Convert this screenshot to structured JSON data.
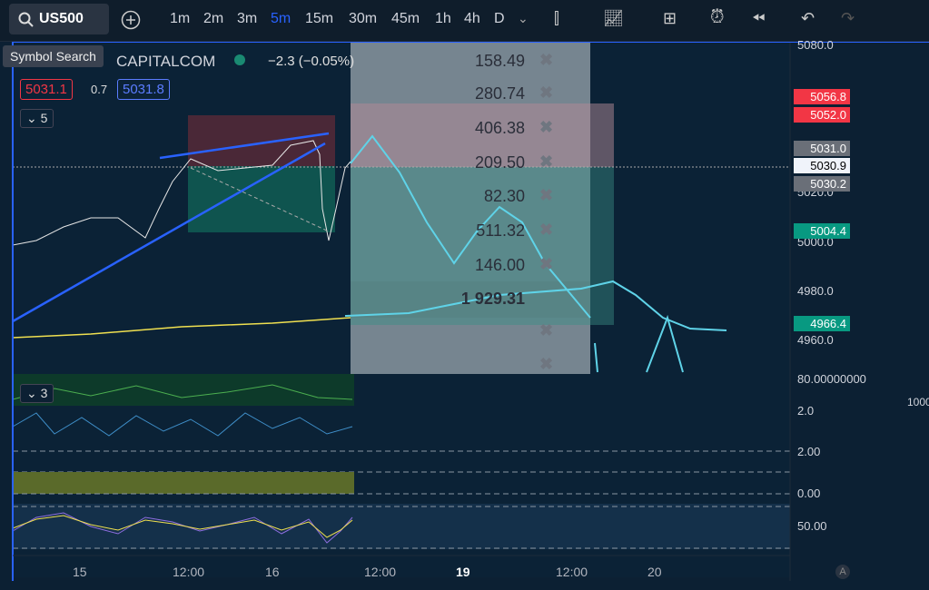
{
  "toolbar": {
    "symbol": "US500",
    "intervals": [
      "1m",
      "2m",
      "3m",
      "5m",
      "15m",
      "30m",
      "45m",
      "1h",
      "4h",
      "D"
    ]
  },
  "tooltip": "Symbol Search",
  "legend": {
    "source": "CAPITALCOM",
    "change": "−2.3 (−0.05%)",
    "bid": "5031.1",
    "spread": "0.7",
    "ask": "5031.8",
    "indicators_count": "5"
  },
  "overlay_values": [
    "158.49",
    "280.74",
    "406.38",
    "209.50",
    "82.30",
    "511.32",
    "146.00",
    "1 929.31"
  ],
  "price_axis": [
    "5080.0",
    "5056.8",
    "5052.0",
    "5031.0",
    "5030.9",
    "5030.2",
    "5020.0",
    "5004.4",
    "5000.0",
    "4980.0",
    "4966.4",
    "4960.0",
    "80.00000000",
    "1000",
    "2.0",
    "2.00",
    "0.00",
    "50.00"
  ],
  "pane_counter": "3",
  "time_axis": [
    "15",
    "12:00",
    "16",
    "12:00",
    "19",
    "12:00",
    "20"
  ],
  "corner": "A"
}
